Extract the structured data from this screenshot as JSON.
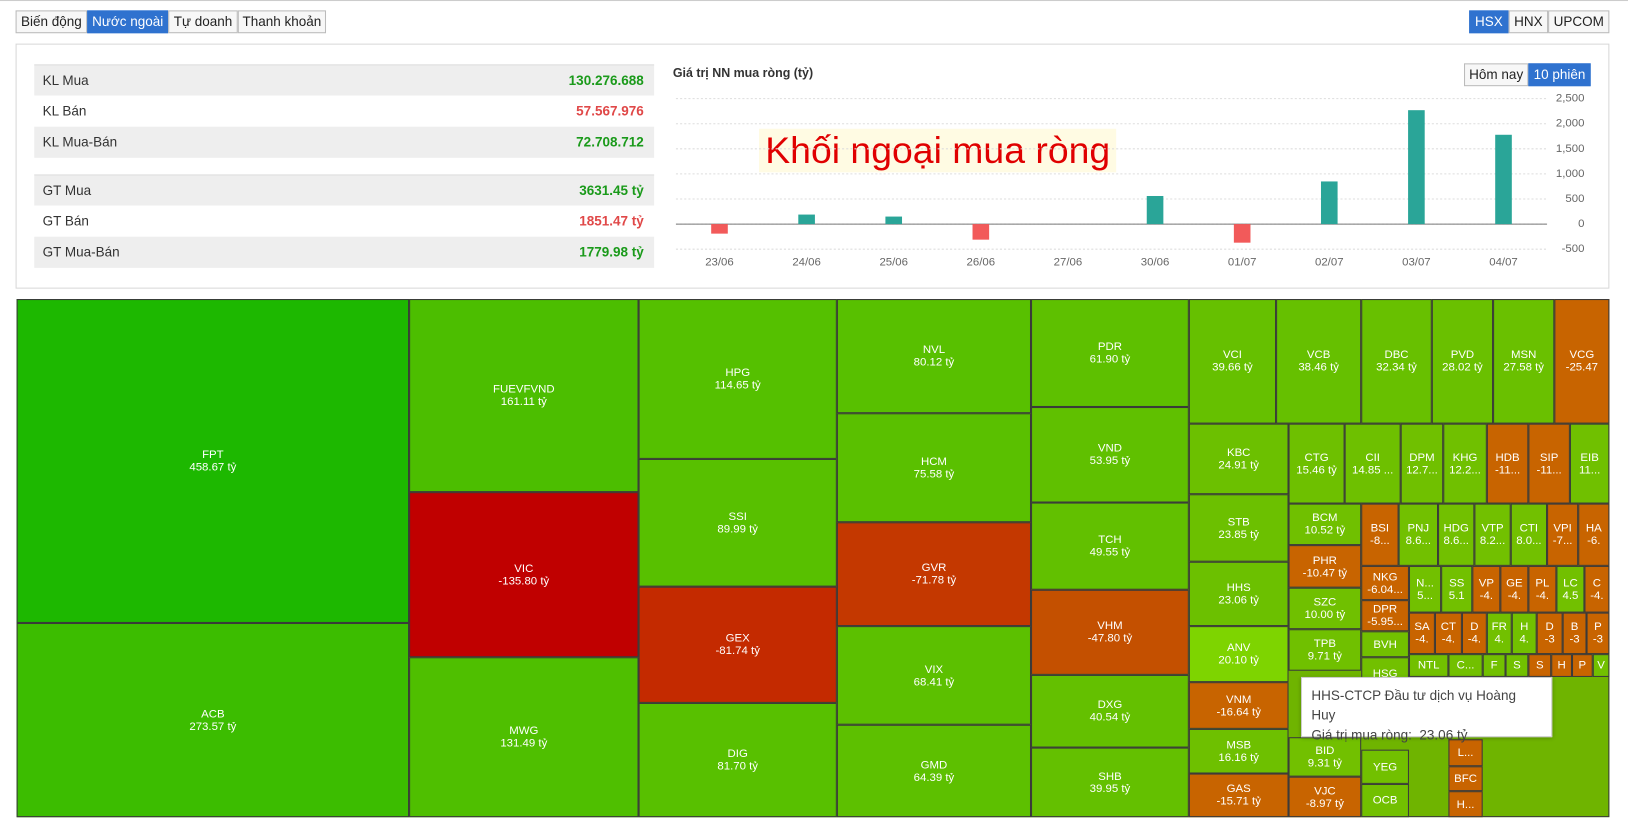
{
  "tabs": [
    "Biến động",
    "Nước ngoài",
    "Tự doanh",
    "Thanh khoản"
  ],
  "exchanges": [
    "HSX",
    "HNX",
    "UPCOM"
  ],
  "stats": {
    "rows": [
      {
        "label": "KL Mua",
        "value": "130.276.688"
      },
      {
        "label": "KL Bán",
        "value": "57.567.976"
      },
      {
        "label": "KL Mua-Bán",
        "value": "72.708.712"
      },
      {
        "label": "GT Mua",
        "value": "3631.45 tỷ"
      },
      {
        "label": "GT Bán",
        "value": "1851.47 tỷ"
      },
      {
        "label": "GT Mua-Bán",
        "value": "1779.98 tỷ"
      }
    ]
  },
  "range_buttons": [
    "Hôm nay",
    "10 phiên"
  ],
  "chart_data": {
    "type": "bar",
    "title": "Giá trị NN mua ròng (tỷ)",
    "annotation": "Khối ngoại mua ròng",
    "categories": [
      "23/06",
      "24/06",
      "25/06",
      "26/06",
      "27/06",
      "30/06",
      "01/07",
      "02/07",
      "03/07",
      "04/07"
    ],
    "values": [
      -190,
      190,
      150,
      -310,
      0,
      560,
      -370,
      850,
      2270,
      1780
    ],
    "color": "#2aa598",
    "negative_color": "#f25a5a",
    "ylim": [
      -500,
      2500
    ],
    "yticks": [
      -500,
      0,
      500,
      {
        "value": 1000,
        "label": "1,000"
      },
      {
        "value": 1500,
        "label": "1,500"
      },
      {
        "value": 2000,
        "label": "2,000"
      },
      {
        "value": 2500,
        "label": "2,500"
      }
    ],
    "grid": true
  },
  "treemap": {
    "tiles": [
      {
        "code": "FPT",
        "value": "458.67 tỷ",
        "color": "#1db800"
      },
      {
        "code": "ACB",
        "value": "273.57 tỷ",
        "color": "#3cbd00"
      },
      {
        "code": "FUEVFVND",
        "value": "161.11 tỷ",
        "color": "#4cbe00"
      },
      {
        "code": "VIC",
        "value": "-135.80 tỷ",
        "color": "#c00000"
      },
      {
        "code": "MWG",
        "value": "131.49 tỷ",
        "color": "#4fbf00"
      },
      {
        "code": "HPG",
        "value": "114.65 tỷ",
        "color": "#55c000"
      },
      {
        "code": "SSI",
        "value": "89.99 tỷ",
        "color": "#58c000"
      },
      {
        "code": "GEX",
        "value": "-81.74 tỷ",
        "color": "#c42a00"
      },
      {
        "code": "DIG",
        "value": "81.70 tỷ",
        "color": "#58c000"
      },
      {
        "code": "NVL",
        "value": "80.12 tỷ",
        "color": "#58c000"
      },
      {
        "code": "HCM",
        "value": "75.58 tỷ",
        "color": "#5ac000"
      },
      {
        "code": "GVR",
        "value": "-71.78 tỷ",
        "color": "#c43800"
      },
      {
        "code": "VIX",
        "value": "68.41 tỷ",
        "color": "#5cc000"
      },
      {
        "code": "GMD",
        "value": "64.39 tỷ",
        "color": "#5dc000"
      },
      {
        "code": "PDR",
        "value": "61.90 tỷ",
        "color": "#5ec000"
      },
      {
        "code": "VND",
        "value": "53.95 tỷ",
        "color": "#60c000"
      },
      {
        "code": "TCH",
        "value": "49.55 tỷ",
        "color": "#62c000"
      },
      {
        "code": "VHM",
        "value": "-47.80 tỷ",
        "color": "#c45000"
      },
      {
        "code": "DXG",
        "value": "40.54 tỷ",
        "color": "#64c000"
      },
      {
        "code": "SHB",
        "value": "39.95 tỷ",
        "color": "#64c000"
      },
      {
        "code": "VCI",
        "value": "39.66 tỷ",
        "color": "#66c000"
      },
      {
        "code": "VCB",
        "value": "38.46 tỷ",
        "color": "#66c000"
      },
      {
        "code": "DBC",
        "value": "32.34 tỷ",
        "color": "#68c000"
      },
      {
        "code": "PVD",
        "value": "28.02 tỷ",
        "color": "#6ac000"
      },
      {
        "code": "MSN",
        "value": "27.58 tỷ",
        "color": "#6ac000"
      },
      {
        "code": "VCG",
        "value": "-25.47",
        "color": "#c86400"
      },
      {
        "code": "KBC",
        "value": "24.91 tỷ",
        "color": "#6cc000"
      },
      {
        "code": "STB",
        "value": "23.85 tỷ",
        "color": "#6cc000"
      },
      {
        "code": "HHS",
        "value": "23.06 tỷ",
        "color": "#6cc000"
      },
      {
        "code": "ANV",
        "value": "20.10 tỷ",
        "color": "#7ed400"
      },
      {
        "code": "VNM",
        "value": "-16.64 tỷ",
        "color": "#c86400"
      },
      {
        "code": "MSB",
        "value": "16.16 tỷ",
        "color": "#6ec000"
      },
      {
        "code": "GAS",
        "value": "-15.71 tỷ",
        "color": "#c86400"
      },
      {
        "code": "CTG",
        "value": "15.46 tỷ",
        "color": "#6ec000"
      },
      {
        "code": "CII",
        "value": "14.85 ...",
        "color": "#6ec000"
      },
      {
        "code": "DPM",
        "value": "12.7...",
        "color": "#70c000"
      },
      {
        "code": "KHG",
        "value": "12.2...",
        "color": "#70c000"
      },
      {
        "code": "HDB",
        "value": "-11...",
        "color": "#c86400"
      },
      {
        "code": "SIP",
        "value": "-11...",
        "color": "#c86400"
      },
      {
        "code": "EIB",
        "value": "11...",
        "color": "#70c000"
      },
      {
        "code": "BCM",
        "value": "10.52 tỷ",
        "color": "#70c000"
      },
      {
        "code": "BSI",
        "value": "-8...",
        "color": "#c86400"
      },
      {
        "code": "PNJ",
        "value": "8.6...",
        "color": "#72c000"
      },
      {
        "code": "HDG",
        "value": "8.6...",
        "color": "#72c000"
      },
      {
        "code": "VTP",
        "value": "8.2...",
        "color": "#72c000"
      },
      {
        "code": "CTI",
        "value": "8.0...",
        "color": "#72c000"
      },
      {
        "code": "VPI",
        "value": "-7...",
        "color": "#c86400"
      },
      {
        "code": "HA",
        "value": "-6.",
        "color": "#c86400"
      },
      {
        "code": "PHR",
        "value": "-10.47 tỷ",
        "color": "#c86400"
      },
      {
        "code": "SZC",
        "value": "10.00 tỷ",
        "color": "#70c000"
      },
      {
        "code": "TPB",
        "value": "9.71 tỷ",
        "color": "#70c000"
      },
      {
        "code": "NKG",
        "value": "-6.04...",
        "color": "#c86400"
      },
      {
        "code": "DPR",
        "value": "-5.95...",
        "color": "#c86400"
      },
      {
        "code": "BVH",
        "color": "#72c000"
      },
      {
        "code": "N...",
        "value": "5...",
        "color": "#72c000"
      },
      {
        "code": "SS",
        "value": "5.1",
        "color": "#72c000"
      },
      {
        "code": "VP",
        "value": "-4.",
        "color": "#c86400"
      },
      {
        "code": "GE",
        "value": "-4.",
        "color": "#c86400"
      },
      {
        "code": "PL",
        "value": "-4.",
        "color": "#c86400"
      },
      {
        "code": "LC",
        "value": "4.5",
        "color": "#72c000"
      },
      {
        "code": "C",
        "value": "-4.",
        "color": "#c86400"
      },
      {
        "code": "SA",
        "value": "-4.",
        "color": "#c86400"
      },
      {
        "code": "CT",
        "value": "-4.",
        "color": "#c86400"
      },
      {
        "code": "D",
        "value": "-4.",
        "color": "#c86400"
      },
      {
        "code": "FR",
        "value": "4.",
        "color": "#72c000"
      },
      {
        "code": "H",
        "value": "4.",
        "color": "#72c000"
      },
      {
        "code": "D",
        "value": "-3",
        "color": "#c86400"
      },
      {
        "code": "B",
        "value": "-3",
        "color": "#c86400"
      },
      {
        "code": "P",
        "value": "-3",
        "color": "#c86400"
      },
      {
        "code": "HSG",
        "color": "#72c000"
      },
      {
        "code": "NTL",
        "color": "#72c000"
      },
      {
        "code": "C...",
        "color": "#72c000"
      },
      {
        "code": "F",
        "color": "#72c000"
      },
      {
        "code": "S",
        "color": "#72c000"
      },
      {
        "code": "S",
        "color": "#c86400"
      },
      {
        "code": "H",
        "color": "#c86400"
      },
      {
        "code": "P",
        "color": "#c86400"
      },
      {
        "code": "V",
        "color": "#72c000"
      },
      {
        "code": "BID",
        "value": "9.31 tỷ",
        "color": "#72c000"
      },
      {
        "code": "VJC",
        "value": "-8.97 tỷ",
        "color": "#c86400"
      },
      {
        "code": "YEG",
        "color": "#72c000"
      },
      {
        "code": "OCB",
        "color": "#72c000"
      },
      {
        "code": "L...",
        "color": "#c86400"
      },
      {
        "code": "BFC",
        "color": "#c86400"
      },
      {
        "code": "H...",
        "color": "#c86400"
      }
    ]
  },
  "tooltip": {
    "title": "HHS-CTCP Đầu tư dịch vụ Hoàng Huy",
    "label": "Giá trị mua ròng:",
    "value": "23.06 tỷ"
  }
}
